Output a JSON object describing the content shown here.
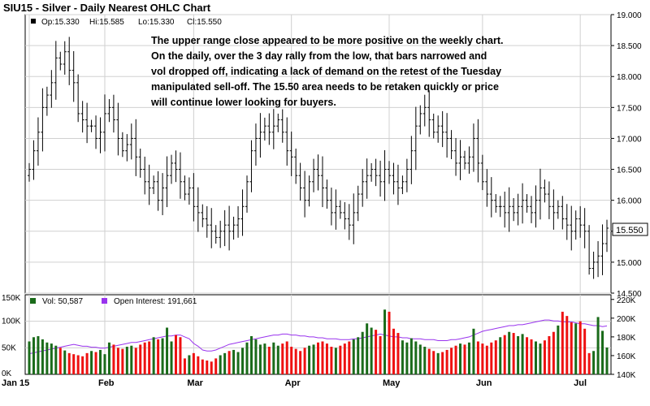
{
  "chart_data": {
    "type": "ohlc",
    "title": "SIU15 - Silver - Daily Nearest OHLC Chart",
    "header": {
      "open": "Op:15.330",
      "high": "Hi:15.585",
      "low": "Lo:15.330",
      "close": "Cl:15.550"
    },
    "last_price_label": "15.550",
    "last_price": 15.55,
    "annotation": "The upper range close appeared to be more positive on the weekly chart.\nOn the daily, over the 3 day rally from the low, that bars narrowed and\nvol dropped off, indicating a lack of demand on the retest of the Tuesday\nmanipulated sell-off.  The 15.50 area needs to be retaken quickly or price\nwill continue lower looking for buyers.",
    "price_axis": {
      "min": 14.5,
      "max": 19.0,
      "ticks": [
        "19.000",
        "18.500",
        "18.000",
        "17.500",
        "17.000",
        "16.500",
        "16.000",
        "15.500",
        "15.000",
        "14.500"
      ],
      "tick_values": [
        19.0,
        18.5,
        18.0,
        17.5,
        17.0,
        16.5,
        16.0,
        15.5,
        15.0,
        14.5
      ]
    },
    "volume_axis": {
      "min": 0,
      "max": 150000,
      "ticks": [
        "150K",
        "100K",
        "50K",
        "0K"
      ],
      "tick_values": [
        150000,
        100000,
        50000,
        0
      ]
    },
    "oi_axis": {
      "min": 140000,
      "max": 225000,
      "ticks": [
        "220K",
        "200K",
        "180K",
        "160K",
        "140K"
      ],
      "tick_values": [
        220000,
        200000,
        180000,
        160000,
        140000
      ]
    },
    "x_labels": [
      "Jan 15",
      "Feb",
      "Mar",
      "Apr",
      "May",
      "Jun",
      "Jul"
    ],
    "x_label_index": [
      0,
      17,
      37,
      59,
      81,
      102,
      124
    ],
    "legend": {
      "volume": "Vol: 50,587",
      "open_interest": "Open Interest: 191,661"
    },
    "grid": true,
    "colors": {
      "price_bar": "#000000",
      "vol_up": "#1a6b1a",
      "vol_down": "#ee1111",
      "open_interest": "#9933ee",
      "grid": "#d0d0d0",
      "legend_volume": "#1a6b1a",
      "legend_oi": "#9933ee"
    },
    "closes": [
      16.5,
      16.8,
      17.1,
      17.5,
      17.7,
      17.9,
      18.3,
      18.2,
      18.4,
      18.1,
      17.9,
      17.4,
      17.3,
      17.2,
      17.2,
      17.0,
      17.1,
      17.4,
      17.5,
      17.3,
      17.0,
      16.8,
      16.9,
      17.0,
      16.7,
      16.5,
      16.3,
      16.2,
      16.3,
      16.0,
      16.2,
      16.4,
      16.6,
      16.5,
      16.3,
      16.1,
      16.2,
      15.9,
      15.8,
      15.7,
      15.6,
      15.5,
      15.4,
      15.5,
      15.6,
      15.5,
      15.6,
      15.7,
      15.9,
      16.3,
      16.8,
      17.0,
      17.1,
      17.2,
      17.1,
      17.2,
      17.3,
      17.1,
      16.8,
      16.7,
      16.4,
      16.2,
      16.0,
      16.3,
      16.5,
      16.4,
      16.2,
      16.0,
      15.8,
      15.9,
      15.8,
      15.7,
      15.6,
      15.8,
      16.1,
      16.3,
      16.4,
      16.5,
      16.4,
      16.3,
      16.5,
      16.4,
      16.3,
      16.2,
      16.3,
      16.5,
      16.8,
      17.2,
      17.4,
      17.5,
      17.3,
      17.1,
      17.2,
      17.1,
      17.0,
      16.8,
      16.6,
      16.7,
      16.6,
      16.7,
      17.0,
      16.6,
      16.3,
      16.1,
      16.0,
      15.9,
      15.9,
      15.8,
      15.9,
      15.8,
      15.9,
      16.0,
      15.9,
      15.8,
      16.0,
      16.2,
      16.1,
      15.9,
      15.8,
      15.9,
      15.7,
      15.6,
      15.5,
      15.7,
      15.6,
      15.5,
      14.9,
      15.0,
      15.1,
      15.3,
      15.55
    ],
    "volumes": [
      62000,
      70000,
      72000,
      66000,
      60000,
      58000,
      54000,
      50000,
      45000,
      40000,
      38000,
      36000,
      34000,
      40000,
      44000,
      42000,
      46000,
      38000,
      60000,
      56000,
      50000,
      48000,
      52000,
      54000,
      50000,
      56000,
      60000,
      62000,
      70000,
      66000,
      68000,
      88000,
      62000,
      74000,
      70000,
      30000,
      36000,
      40000,
      34000,
      28000,
      26000,
      24000,
      30000,
      36000,
      40000,
      44000,
      46000,
      42000,
      50000,
      60000,
      72000,
      66000,
      56000,
      58000,
      52000,
      60000,
      54000,
      58000,
      62000,
      52000,
      48000,
      44000,
      50000,
      54000,
      56000,
      60000,
      62000,
      58000,
      52000,
      50000,
      54000,
      58000,
      62000,
      66000,
      70000,
      80000,
      96000,
      88000,
      84000,
      72000,
      122000,
      118000,
      86000,
      78000,
      64000,
      60000,
      68000,
      62000,
      56000,
      52000,
      48000,
      44000,
      40000,
      42000,
      46000,
      50000,
      54000,
      58000,
      56000,
      60000,
      86000,
      62000,
      58000,
      54000,
      60000,
      64000,
      70000,
      74000,
      80000,
      78000,
      72000,
      76000,
      70000,
      66000,
      62000,
      58000,
      64000,
      72000,
      80000,
      92000,
      118000,
      110000,
      98000,
      96000,
      100000,
      86000,
      40000,
      44000,
      108000,
      82000,
      50587
    ],
    "open_interest": [
      162000,
      163000,
      164000,
      165000,
      166000,
      167000,
      168000,
      169000,
      170000,
      171000,
      172000,
      171000,
      170000,
      170000,
      169000,
      169000,
      168000,
      168000,
      169000,
      170000,
      171000,
      172000,
      173000,
      174000,
      174000,
      175000,
      176000,
      177000,
      178000,
      179000,
      180000,
      181000,
      181000,
      182000,
      182000,
      180000,
      178000,
      173000,
      170000,
      166000,
      165000,
      165000,
      166000,
      168000,
      170000,
      172000,
      173000,
      174000,
      175000,
      176000,
      177000,
      178000,
      179000,
      180000,
      181000,
      182000,
      182000,
      183000,
      183000,
      182000,
      182000,
      181000,
      181000,
      180000,
      180000,
      179000,
      179000,
      178000,
      178000,
      178000,
      177000,
      177000,
      177000,
      178000,
      178000,
      179000,
      180000,
      181000,
      182000,
      183000,
      182000,
      181000,
      180000,
      180000,
      179000,
      179000,
      178000,
      178000,
      178000,
      177000,
      177000,
      177000,
      176000,
      176000,
      176000,
      177000,
      177000,
      178000,
      179000,
      180000,
      182000,
      184000,
      186000,
      187000,
      188000,
      189000,
      190000,
      191000,
      192000,
      192000,
      193000,
      193000,
      194000,
      195000,
      196000,
      197000,
      198000,
      198000,
      197000,
      197000,
      196000,
      196000,
      196000,
      195000,
      194000,
      194000,
      193000,
      192000,
      192000,
      191000,
      191661
    ]
  }
}
